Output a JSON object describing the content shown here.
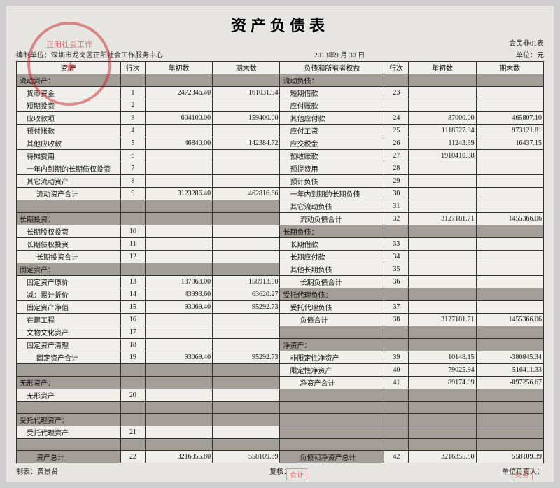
{
  "title": "资产负债表",
  "org": "编制单位：深圳市龙岗区正阳社会工作服务中心",
  "date": "2013年9 月 30 日",
  "formNo": "会民非01表",
  "unit": "单位：元",
  "head": {
    "asset": "资    产",
    "line": "行次",
    "begin": "年初数",
    "end": "期末数",
    "liab": "负债和所有者权益",
    "line2": "行次",
    "begin2": "年初数",
    "end2": "期末数"
  },
  "rows": [
    {
      "l": "流动资产：",
      "lSec": true,
      "r": "流动负债：",
      "rSec": true
    },
    {
      "l": "货币资金",
      "li": 1,
      "ln": "1",
      "lb": "2472346.40",
      "le": "161031.94",
      "r": "短期借款",
      "ri": 1,
      "rn": "23"
    },
    {
      "l": "短期投资",
      "li": 1,
      "ln": "2",
      "r": "应付账款",
      "ri": 1
    },
    {
      "l": "应收款项",
      "li": 1,
      "ln": "3",
      "lb": "604100.00",
      "le": "159400.00",
      "r": "其他应付款",
      "ri": 1,
      "rn": "24",
      "rb": "87000.00",
      "re": "465807.10"
    },
    {
      "l": "预付账款",
      "li": 1,
      "ln": "4",
      "r": "应付工资",
      "ri": 1,
      "rn": "25",
      "rb": "1118527.94",
      "re": "973121.81"
    },
    {
      "l": "其他应收款",
      "li": 1,
      "ln": "5",
      "lb": "46840.00",
      "le": "142384.72",
      "r": "应交税金",
      "ri": 1,
      "rn": "26",
      "rb": "11243.39",
      "re": "16437.15"
    },
    {
      "l": "待摊费用",
      "li": 1,
      "ln": "6",
      "r": "预收账款",
      "ri": 1,
      "rn": "27",
      "rb": "1910410.38"
    },
    {
      "l": "一年内到期的长期债权投资",
      "li": 1,
      "ln": "7",
      "r": "预提费用",
      "ri": 1,
      "rn": "28"
    },
    {
      "l": "其它流动资产",
      "li": 1,
      "ln": "8",
      "r": "预计负债",
      "ri": 1,
      "rn": "29"
    },
    {
      "l": "流动资产合计",
      "li": 2,
      "ln": "9",
      "lb": "3123286.40",
      "le": "462816.66",
      "r": "一年内到期的长期负债",
      "ri": 1,
      "rn": "30"
    },
    {
      "blankL": true,
      "r": "其它流动负债",
      "ri": 1,
      "rn": "31"
    },
    {
      "l": "长期投资：",
      "lSec": true,
      "r": "流动负债合计",
      "ri": 2,
      "rn": "32",
      "rb": "3127181.71",
      "re": "1455366.06"
    },
    {
      "l": "长期股权投资",
      "li": 1,
      "ln": "10",
      "r": "长期负债：",
      "rSec": true
    },
    {
      "l": "长期债权投资",
      "li": 1,
      "ln": "11",
      "r": "长期借款",
      "ri": 1,
      "rn": "33"
    },
    {
      "l": "长期投资合计",
      "li": 2,
      "ln": "12",
      "r": "长期应付款",
      "ri": 1,
      "rn": "34"
    },
    {
      "l": "固定资产：",
      "lSec": true,
      "r": "其他长期负债",
      "ri": 1,
      "rn": "35"
    },
    {
      "l": "固定资产原价",
      "li": 1,
      "ln": "13",
      "lb": "137063.00",
      "le": "158913.00",
      "r": "长期负债合计",
      "ri": 2,
      "rn": "36"
    },
    {
      "l": "减：累计折价",
      "li": 1,
      "ln": "14",
      "lb": "43993.60",
      "le": "63620.27",
      "r": "受托代理负债：",
      "rSec": true
    },
    {
      "l": "固定资产净值",
      "li": 1,
      "ln": "15",
      "lb": "93069.40",
      "le": "95292.73",
      "r": "受托代理负债",
      "ri": 1,
      "rn": "37"
    },
    {
      "l": "在建工程",
      "li": 1,
      "ln": "16",
      "r": "负债合计",
      "ri": 2,
      "rn": "38",
      "rb": "3127181.71",
      "re": "1455366.06"
    },
    {
      "l": "文物文化资产",
      "li": 1,
      "ln": "17",
      "blankR": true
    },
    {
      "l": "固定资产清理",
      "li": 1,
      "ln": "18",
      "r": "净资产：",
      "rSec": true
    },
    {
      "l": "固定资产合计",
      "li": 2,
      "ln": "19",
      "lb": "93069.40",
      "le": "95292.73",
      "r": "非限定性净资产",
      "ri": 1,
      "rn": "39",
      "rb": "10148.15",
      "re": "-380845.34"
    },
    {
      "blankL": true,
      "r": "限定性净资产",
      "ri": 1,
      "rn": "40",
      "rb": "79025.94",
      "re": "-516411.33"
    },
    {
      "l": "无形资产：",
      "lSec": true,
      "r": "净资产合计",
      "ri": 2,
      "rn": "41",
      "rb": "89174.09",
      "re": "-897256.67"
    },
    {
      "l": "无形资产",
      "li": 1,
      "ln": "20",
      "blankR": true
    },
    {
      "blankL": true,
      "blankR": true
    },
    {
      "l": "受托代理资产：",
      "lSec": true,
      "blankR": true
    },
    {
      "l": "受托代理资产",
      "li": 1,
      "ln": "21",
      "blankR": true
    },
    {
      "blankL": true,
      "blankR": true
    },
    {
      "l": "资产总计",
      "li": 2,
      "ln": "22",
      "lb": "3216355.80",
      "le": "558109.39",
      "lTot": true,
      "r": "负债和净资产总计",
      "ri": 2,
      "rn": "42",
      "rb": "3216355.80",
      "re": "558109.39",
      "rTot": true
    }
  ],
  "footer": {
    "preparer": "制表：黄景贤",
    "checker": "复核：",
    "approver": "单位负责人："
  }
}
